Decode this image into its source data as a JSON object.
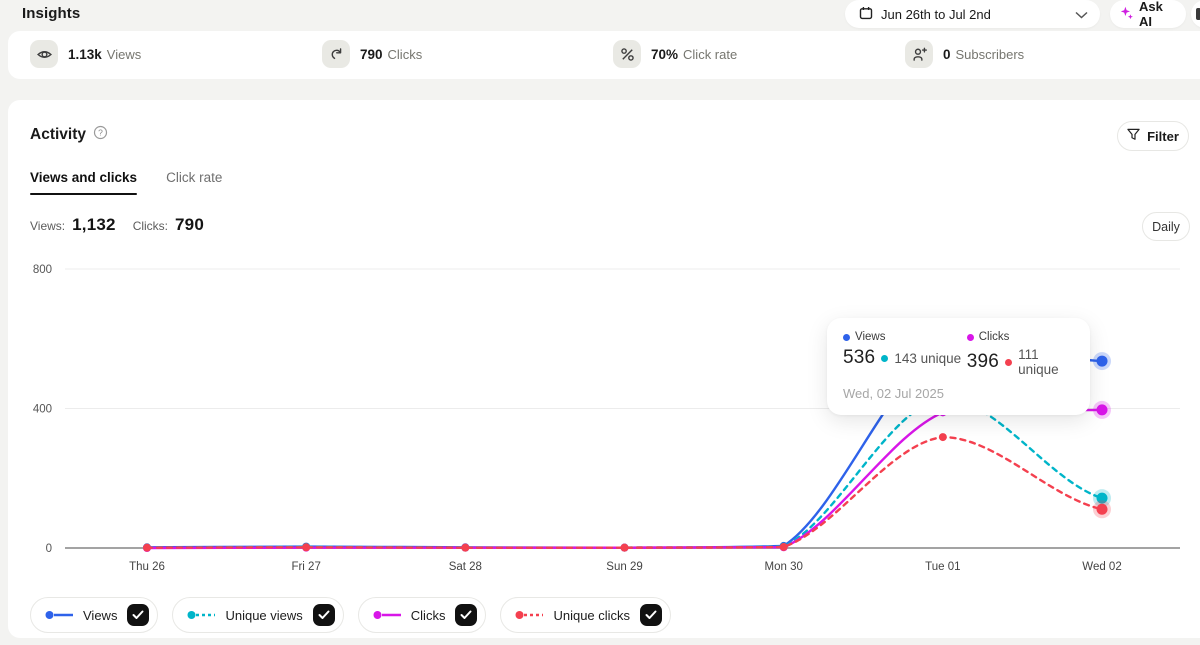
{
  "header": {
    "title": "Insights",
    "date_range": "Jun 26th to Jul 2nd",
    "ask_ai_label": "Ask AI"
  },
  "stats": [
    {
      "icon": "eye-icon",
      "value": "1.13k",
      "label": "Views"
    },
    {
      "icon": "link-icon",
      "value": "790",
      "label": "Clicks"
    },
    {
      "icon": "percent-icon",
      "value": "70%",
      "label": "Click rate"
    },
    {
      "icon": "person-plus-icon",
      "value": "0",
      "label": "Subscribers"
    }
  ],
  "activity": {
    "title": "Activity",
    "filter_label": "Filter",
    "tabs": [
      {
        "label": "Views and clicks",
        "active": true
      },
      {
        "label": "Click rate",
        "active": false
      }
    ],
    "summary": {
      "views_label": "Views:",
      "views_value": "1,132",
      "clicks_label": "Clicks:",
      "clicks_value": "790"
    },
    "granularity_label": "Daily"
  },
  "tooltip": {
    "views_label": "Views",
    "views_value": "536",
    "views_unique": "143 unique",
    "clicks_label": "Clicks",
    "clicks_value": "396",
    "clicks_unique": "111 unique",
    "date": "Wed, 02 Jul 2025"
  },
  "legend": [
    {
      "label": "Views",
      "series": "Views",
      "checked": true
    },
    {
      "label": "Unique views",
      "series": "Unique views",
      "checked": true
    },
    {
      "label": "Clicks",
      "series": "Clicks",
      "checked": true
    },
    {
      "label": "Unique clicks",
      "series": "Unique clicks",
      "checked": true
    }
  ],
  "colors": {
    "accent_ai": "#cf1ee0",
    "views": "#2e62ea",
    "unique_views": "#00b5c9",
    "clicks": "#d816e8",
    "unique_clicks": "#f4404f",
    "grid": "#ececec",
    "axis": "#a3a3a3"
  },
  "chart_data": {
    "type": "line",
    "categories": [
      "Thu 26",
      "Fri 27",
      "Sat 28",
      "Sun 29",
      "Mon 30",
      "Tue 01",
      "Wed 02"
    ],
    "yticks": [
      0,
      400,
      800
    ],
    "ylim": [
      0,
      800
    ],
    "legend_position": "bottom",
    "grid": true,
    "series": [
      {
        "name": "Views",
        "color": "#2e62ea",
        "dashed": false,
        "values": [
          2,
          4,
          2,
          1,
          6,
          580,
          536
        ]
      },
      {
        "name": "Unique views",
        "color": "#00b5c9",
        "dashed": true,
        "values": [
          1,
          3,
          1,
          1,
          4,
          430,
          143
        ]
      },
      {
        "name": "Clicks",
        "color": "#d816e8",
        "dashed": false,
        "values": [
          0,
          1,
          1,
          1,
          2,
          389,
          396
        ]
      },
      {
        "name": "Unique clicks",
        "color": "#f4404f",
        "dashed": true,
        "values": [
          1,
          2,
          1,
          1,
          3,
          318,
          111
        ]
      }
    ]
  }
}
